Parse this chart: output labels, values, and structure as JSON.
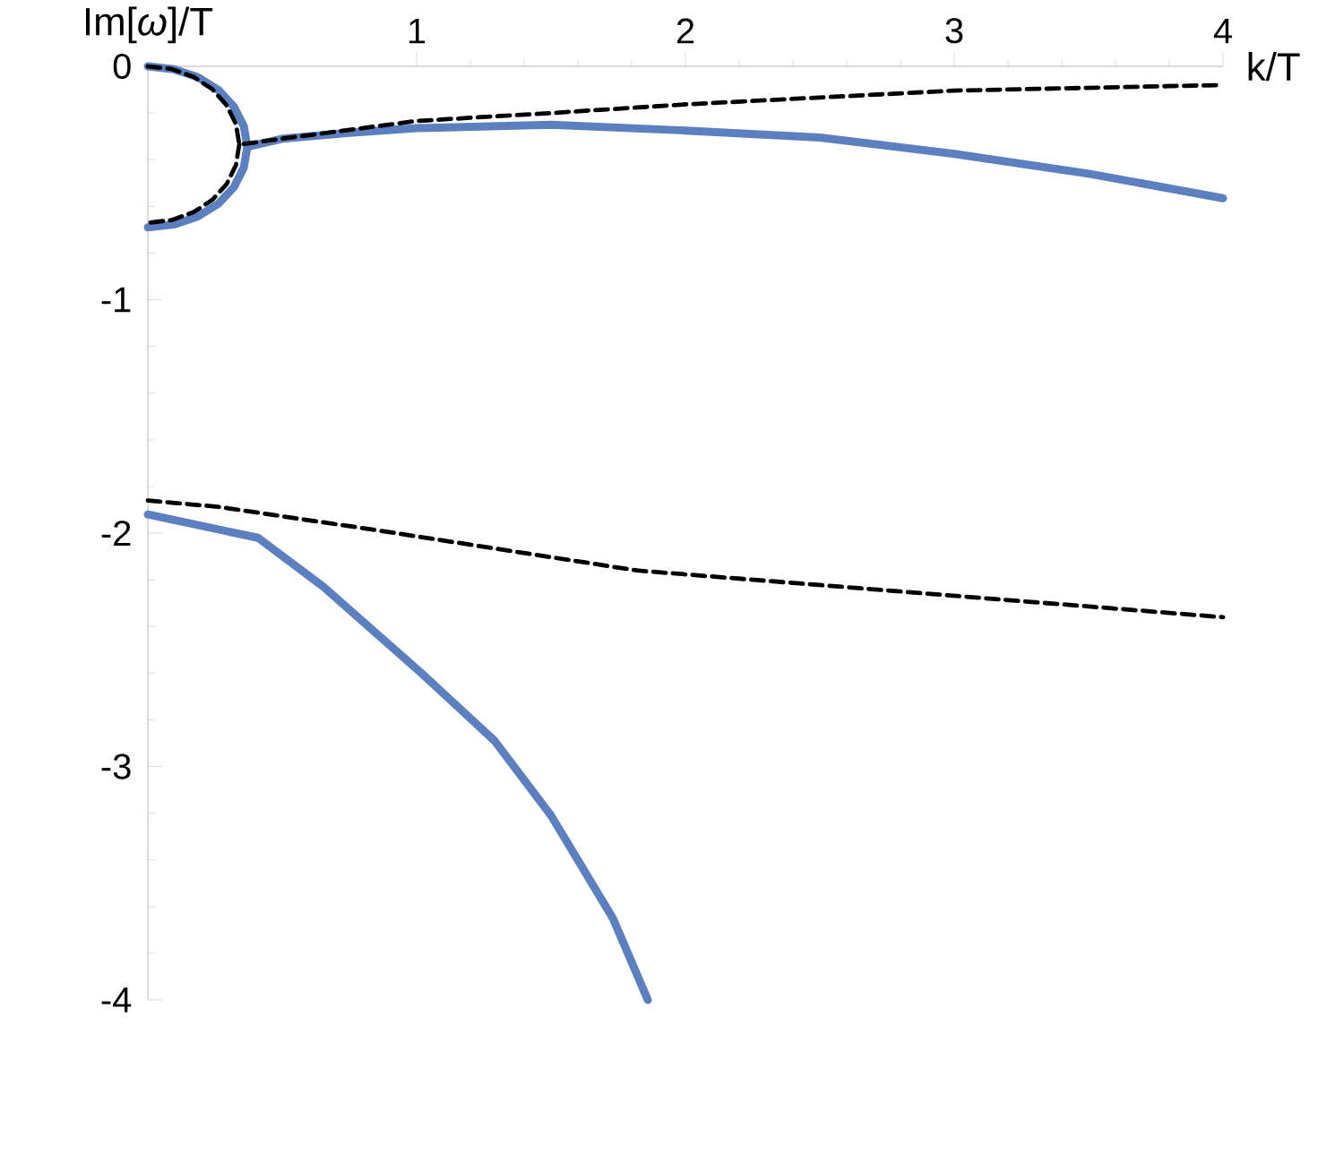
{
  "chart_data": {
    "type": "line",
    "xlabel": "k/T",
    "ylabel": "Im[*ω*]/T",
    "xlim": [
      0,
      4
    ],
    "ylim": [
      -4,
      0
    ],
    "xticks": [
      1,
      2,
      3,
      4
    ],
    "yticks": [
      0,
      -1,
      -2,
      -3,
      -4
    ],
    "grid": false,
    "marker": "none",
    "series": [
      {
        "color": "#5b7fbf",
        "line_style": "solid",
        "x": [
          0,
          0.096,
          0.185,
          0.262,
          0.32,
          0.357,
          0.37,
          0.5,
          0.75,
          1.0,
          1.5,
          2.0,
          2.5,
          3.0,
          3.5,
          4.0
        ],
        "values": [
          0,
          -0.012,
          -0.046,
          -0.101,
          -0.173,
          -0.256,
          -0.345,
          -0.31,
          -0.285,
          -0.265,
          -0.25,
          -0.275,
          -0.305,
          -0.375,
          -0.46,
          -0.565
        ]
      },
      {
        "color": "#5b7fbf",
        "line_style": "solid",
        "x": [
          0.37,
          0.357,
          0.32,
          0.262,
          0.185,
          0.096,
          0
        ],
        "values": [
          -0.345,
          -0.434,
          -0.518,
          -0.589,
          -0.644,
          -0.678,
          -0.69
        ]
      },
      {
        "color": "#5b7fbf",
        "line_style": "solid",
        "x": [
          0,
          0.41,
          0.653,
          1.018,
          1.29,
          1.5,
          1.73,
          1.86
        ],
        "values": [
          -1.92,
          -2.02,
          -2.23,
          -2.6,
          -2.89,
          -3.21,
          -3.65,
          -4.0
        ]
      },
      {
        "color": "#000000",
        "line_style": "dashed",
        "x": [
          0,
          0.088,
          0.17,
          0.24,
          0.294,
          0.328,
          0.34,
          0.5,
          1.0,
          1.5,
          2.0,
          3.0,
          4.0
        ],
        "values": [
          0,
          -0.011,
          -0.045,
          -0.098,
          -0.168,
          -0.248,
          -0.335,
          -0.31,
          -0.234,
          -0.2,
          -0.163,
          -0.104,
          -0.08
        ]
      },
      {
        "color": "#000000",
        "line_style": "dashed",
        "x": [
          0.34,
          0.328,
          0.294,
          0.24,
          0.17,
          0.088,
          0
        ],
        "values": [
          -0.335,
          -0.422,
          -0.503,
          -0.572,
          -0.625,
          -0.659,
          -0.67
        ]
      },
      {
        "color": "#000000",
        "line_style": "dashed",
        "x": [
          0,
          0.26,
          0.866,
          1.82,
          2.69,
          4.0
        ],
        "values": [
          -1.86,
          -1.887,
          -1.99,
          -2.16,
          -2.24,
          -2.36
        ]
      }
    ]
  }
}
